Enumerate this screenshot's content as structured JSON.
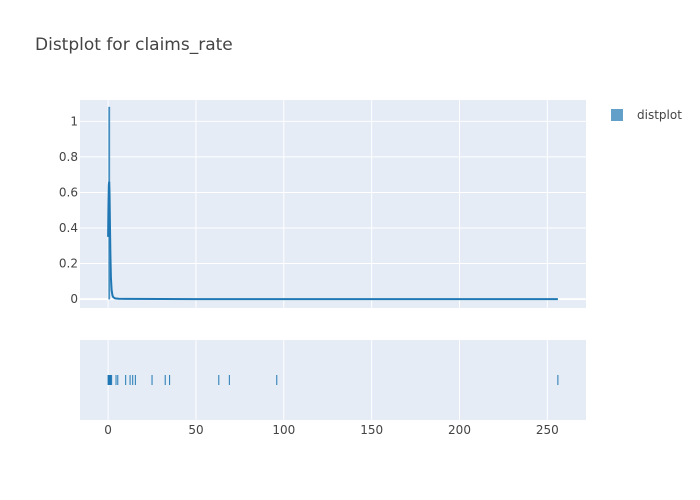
{
  "chart_data": {
    "type": "histogram",
    "title": "Distplot for claims_rate",
    "legend": {
      "position": "top-right",
      "entries": [
        {
          "name": "distplot",
          "color": "#1f77b4"
        }
      ]
    },
    "xlim": [
      -16,
      272
    ],
    "x_ticks": [
      0,
      50,
      100,
      150,
      200,
      250
    ],
    "ylim": [
      -0.05,
      1.12
    ],
    "y_ticks": [
      0,
      0.2,
      0.4,
      0.6,
      0.8,
      1
    ],
    "y_tick_labels": [
      "0",
      "0.2",
      "0.4",
      "0.6",
      "0.8",
      "1"
    ],
    "grid": true,
    "series": [
      {
        "name": "distplot",
        "kind": "histogram",
        "color": "#1f77b4",
        "bins": [
          {
            "x0": 0.3,
            "x1": 1.0,
            "y": 1.08
          }
        ]
      },
      {
        "name": "distplot",
        "kind": "kde",
        "color": "#1f77b4",
        "x": [
          0,
          0.2,
          0.4,
          0.6,
          0.8,
          1.0,
          1.3,
          1.6,
          2.0,
          2.5,
          3.0,
          4.0,
          6.0,
          10,
          50,
          100,
          150,
          200,
          256
        ],
        "y": [
          0.35,
          0.52,
          0.64,
          0.66,
          0.6,
          0.45,
          0.25,
          0.12,
          0.05,
          0.02,
          0.01,
          0.004,
          0.002,
          0.001,
          0.0,
          0.0,
          0.0,
          0.0,
          0.0
        ]
      },
      {
        "name": "distplot",
        "kind": "rug",
        "color": "#1f77b4",
        "x": [
          0.0,
          0.2,
          0.4,
          0.6,
          0.8,
          1.0,
          1.2,
          1.5,
          2.0,
          4.5,
          5.5,
          10,
          12.5,
          14,
          15.5,
          25,
          32.5,
          35,
          63,
          69,
          96,
          256
        ]
      }
    ]
  }
}
